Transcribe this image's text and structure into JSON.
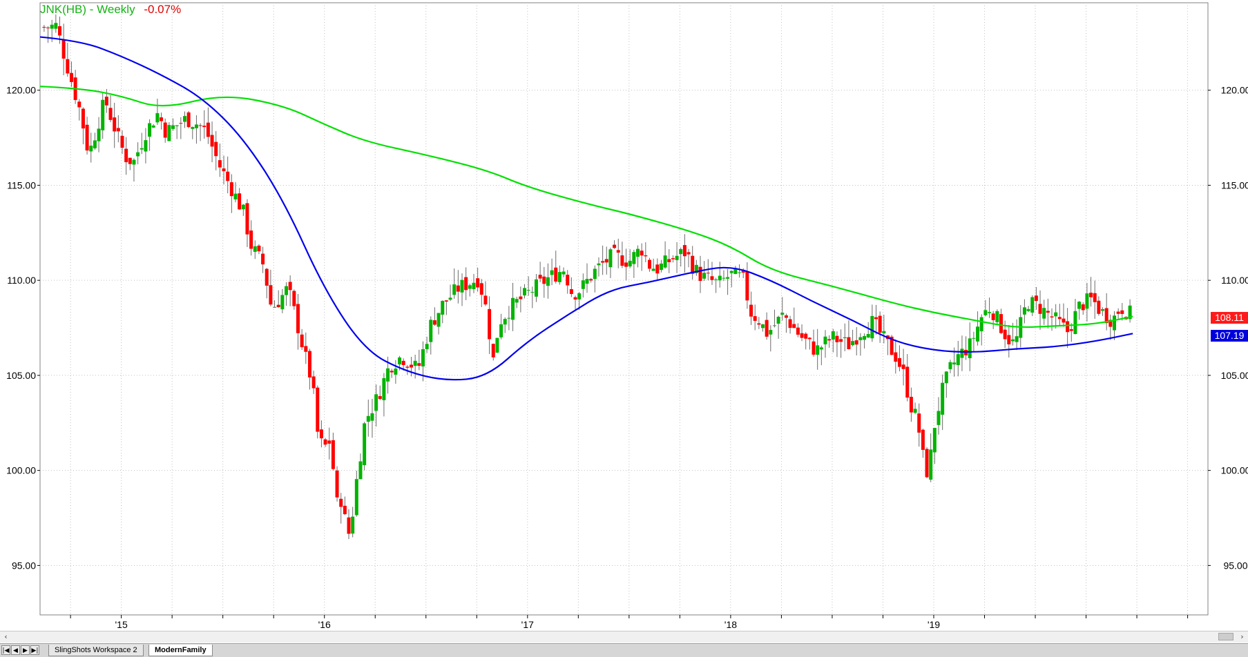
{
  "header": {
    "symbol": "JNK(HB) - Weekly",
    "change": "-0.07%"
  },
  "price_tags": {
    "last": "108.11",
    "ma_blue": "107.19"
  },
  "tabs": [
    {
      "label": "SlingShots Workspace 2"
    },
    {
      "label": "ModernFamily"
    }
  ],
  "nav_buttons": [
    "|◀",
    "◀",
    "▶",
    "▶|"
  ],
  "colors": {
    "up": "#00b400",
    "down": "#ff0000",
    "ma_green": "#00e000",
    "ma_blue": "#0000ee",
    "grid": "#c0c0c0"
  },
  "chart_data": {
    "type": "candlestick",
    "title": "JNK(HB) - Weekly",
    "y_ticks": [
      "95.00",
      "100.00",
      "105.00",
      "110.00",
      "115.00",
      "120.00"
    ],
    "ylim": [
      92.4,
      124.6
    ],
    "x_ticks": [
      {
        "label": "'15",
        "t": 2015.0
      },
      {
        "label": "'16",
        "t": 2016.0
      },
      {
        "label": "'17",
        "t": 2017.0
      },
      {
        "label": "'18",
        "t": 2018.0
      },
      {
        "label": "'19",
        "t": 2019.0
      }
    ],
    "xlim": [
      2014.6,
      2020.35
    ],
    "grid": true,
    "close_path": [
      [
        2014.62,
        123.3
      ],
      [
        2014.68,
        123.4
      ],
      [
        2014.72,
        121.8
      ],
      [
        2014.8,
        118.8
      ],
      [
        2014.84,
        116.6
      ],
      [
        2014.92,
        119.5
      ],
      [
        2014.98,
        117.6
      ],
      [
        2015.02,
        116.5
      ],
      [
        2015.06,
        116.2
      ],
      [
        2015.12,
        117.8
      ],
      [
        2015.18,
        118.8
      ],
      [
        2015.22,
        117.8
      ],
      [
        2015.32,
        118.5
      ],
      [
        2015.38,
        118.2
      ],
      [
        2015.42,
        117.8
      ],
      [
        2015.48,
        116.1
      ],
      [
        2015.54,
        114.9
      ],
      [
        2015.6,
        113.6
      ],
      [
        2015.64,
        111.8
      ],
      [
        2015.7,
        110.8
      ],
      [
        2015.74,
        108.5
      ],
      [
        2015.78,
        109.0
      ],
      [
        2015.82,
        109.6
      ],
      [
        2015.86,
        108.0
      ],
      [
        2015.9,
        106.2
      ],
      [
        2015.94,
        104.6
      ],
      [
        2015.97,
        101.6
      ],
      [
        2016.0,
        101.2
      ],
      [
        2016.03,
        101.6
      ],
      [
        2016.06,
        98.2
      ],
      [
        2016.09,
        98.6
      ],
      [
        2016.11,
        96.4
      ],
      [
        2016.13,
        97.0
      ],
      [
        2016.16,
        99.6
      ],
      [
        2016.2,
        102.6
      ],
      [
        2016.26,
        103.8
      ],
      [
        2016.32,
        105.5
      ],
      [
        2016.38,
        106.0
      ],
      [
        2016.46,
        105.3
      ],
      [
        2016.52,
        107.6
      ],
      [
        2016.58,
        108.7
      ],
      [
        2016.66,
        109.6
      ],
      [
        2016.76,
        110.1
      ],
      [
        2016.8,
        108.3
      ],
      [
        2016.83,
        105.7
      ],
      [
        2016.86,
        107.8
      ],
      [
        2016.92,
        108.6
      ],
      [
        2017.0,
        109.3
      ],
      [
        2017.1,
        110.1
      ],
      [
        2017.18,
        110.6
      ],
      [
        2017.22,
        109.3
      ],
      [
        2017.26,
        109.5
      ],
      [
        2017.34,
        110.6
      ],
      [
        2017.42,
        111.3
      ],
      [
        2017.5,
        111.0
      ],
      [
        2017.56,
        111.7
      ],
      [
        2017.6,
        110.8
      ],
      [
        2017.64,
        110.6
      ],
      [
        2017.72,
        111.2
      ],
      [
        2017.78,
        111.5
      ],
      [
        2017.82,
        110.6
      ],
      [
        2017.86,
        110.2
      ],
      [
        2017.94,
        109.8
      ],
      [
        2018.0,
        110.3
      ],
      [
        2018.06,
        110.1
      ],
      [
        2018.1,
        108.3
      ],
      [
        2018.14,
        107.9
      ],
      [
        2018.18,
        107.2
      ],
      [
        2018.26,
        108.2
      ],
      [
        2018.34,
        107.1
      ],
      [
        2018.42,
        106.3
      ],
      [
        2018.5,
        107.0
      ],
      [
        2018.58,
        106.6
      ],
      [
        2018.64,
        107.3
      ],
      [
        2018.7,
        107.8
      ],
      [
        2018.76,
        106.8
      ],
      [
        2018.82,
        105.9
      ],
      [
        2018.86,
        104.8
      ],
      [
        2018.88,
        103.6
      ],
      [
        2018.92,
        102.6
      ],
      [
        2018.96,
        99.8
      ],
      [
        2018.98,
        100.3
      ],
      [
        2019.0,
        102.2
      ],
      [
        2019.04,
        104.1
      ],
      [
        2019.08,
        105.3
      ],
      [
        2019.12,
        106.0
      ],
      [
        2019.18,
        106.6
      ],
      [
        2019.24,
        108.2
      ],
      [
        2019.28,
        108.6
      ],
      [
        2019.36,
        107.0
      ],
      [
        2019.4,
        106.6
      ],
      [
        2019.46,
        108.9
      ],
      [
        2019.52,
        108.6
      ],
      [
        2019.6,
        107.9
      ],
      [
        2019.66,
        107.3
      ],
      [
        2019.72,
        108.7
      ],
      [
        2019.78,
        109.0
      ],
      [
        2019.82,
        108.4
      ],
      [
        2019.88,
        107.9
      ],
      [
        2019.92,
        108.6
      ],
      [
        2019.96,
        108.3
      ],
      [
        2019.98,
        108.1
      ]
    ],
    "series": [
      {
        "name": "",
        "color": "#00e000",
        "points": [
          [
            2014.6,
            120.2
          ],
          [
            2014.8,
            120.1
          ],
          [
            2015.0,
            119.7
          ],
          [
            2015.2,
            119.0
          ],
          [
            2015.5,
            119.8
          ],
          [
            2015.8,
            119.2
          ],
          [
            2016.0,
            118.2
          ],
          [
            2016.2,
            117.3
          ],
          [
            2016.5,
            116.6
          ],
          [
            2016.8,
            115.8
          ],
          [
            2017.0,
            114.9
          ],
          [
            2017.3,
            114.0
          ],
          [
            2017.5,
            113.5
          ],
          [
            2017.8,
            112.6
          ],
          [
            2018.0,
            111.8
          ],
          [
            2018.2,
            110.5
          ],
          [
            2018.5,
            109.7
          ],
          [
            2018.8,
            108.8
          ],
          [
            2019.0,
            108.3
          ],
          [
            2019.2,
            107.9
          ],
          [
            2019.4,
            107.5
          ],
          [
            2019.6,
            107.6
          ],
          [
            2019.8,
            107.7
          ],
          [
            2019.98,
            108.1
          ]
        ]
      },
      {
        "name": "",
        "color": "#0000ee",
        "points": [
          [
            2014.6,
            122.8
          ],
          [
            2014.8,
            122.6
          ],
          [
            2015.0,
            121.8
          ],
          [
            2015.2,
            120.8
          ],
          [
            2015.4,
            119.6
          ],
          [
            2015.6,
            117.5
          ],
          [
            2015.8,
            114.2
          ],
          [
            2016.0,
            109.5
          ],
          [
            2016.2,
            106.3
          ],
          [
            2016.4,
            105.2
          ],
          [
            2016.6,
            104.7
          ],
          [
            2016.8,
            104.9
          ],
          [
            2017.0,
            106.8
          ],
          [
            2017.2,
            108.2
          ],
          [
            2017.4,
            109.5
          ],
          [
            2017.6,
            109.9
          ],
          [
            2017.8,
            110.4
          ],
          [
            2018.0,
            110.8
          ],
          [
            2018.2,
            110.0
          ],
          [
            2018.4,
            108.9
          ],
          [
            2018.6,
            107.9
          ],
          [
            2018.8,
            106.8
          ],
          [
            2019.0,
            106.3
          ],
          [
            2019.2,
            106.2
          ],
          [
            2019.4,
            106.4
          ],
          [
            2019.6,
            106.5
          ],
          [
            2019.8,
            106.8
          ],
          [
            2019.98,
            107.2
          ]
        ]
      }
    ]
  }
}
